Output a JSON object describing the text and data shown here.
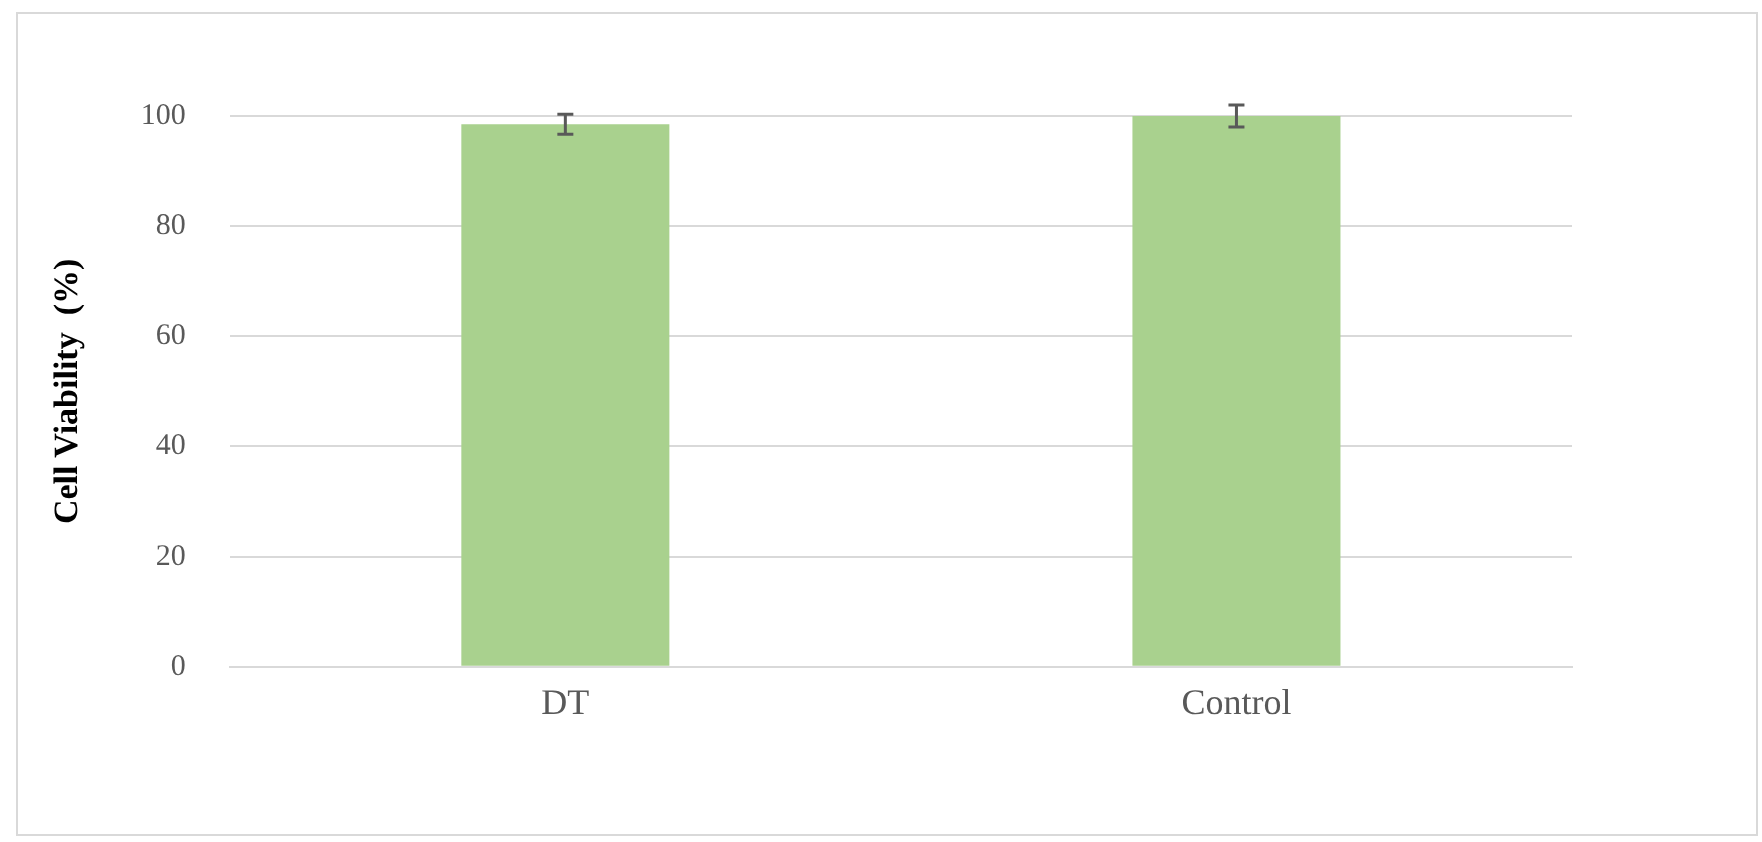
{
  "chart_data": {
    "type": "bar",
    "ylabel": "Cell Viability  (%)",
    "categories": [
      "DT",
      "Control"
    ],
    "values": [
      98.5,
      100
    ],
    "errors": [
      1.8,
      2
    ],
    "color": "#a9d18e",
    "ylim": [
      0,
      100
    ],
    "yticks": [
      0,
      20,
      40,
      60,
      80,
      100
    ],
    "grid": "y"
  }
}
